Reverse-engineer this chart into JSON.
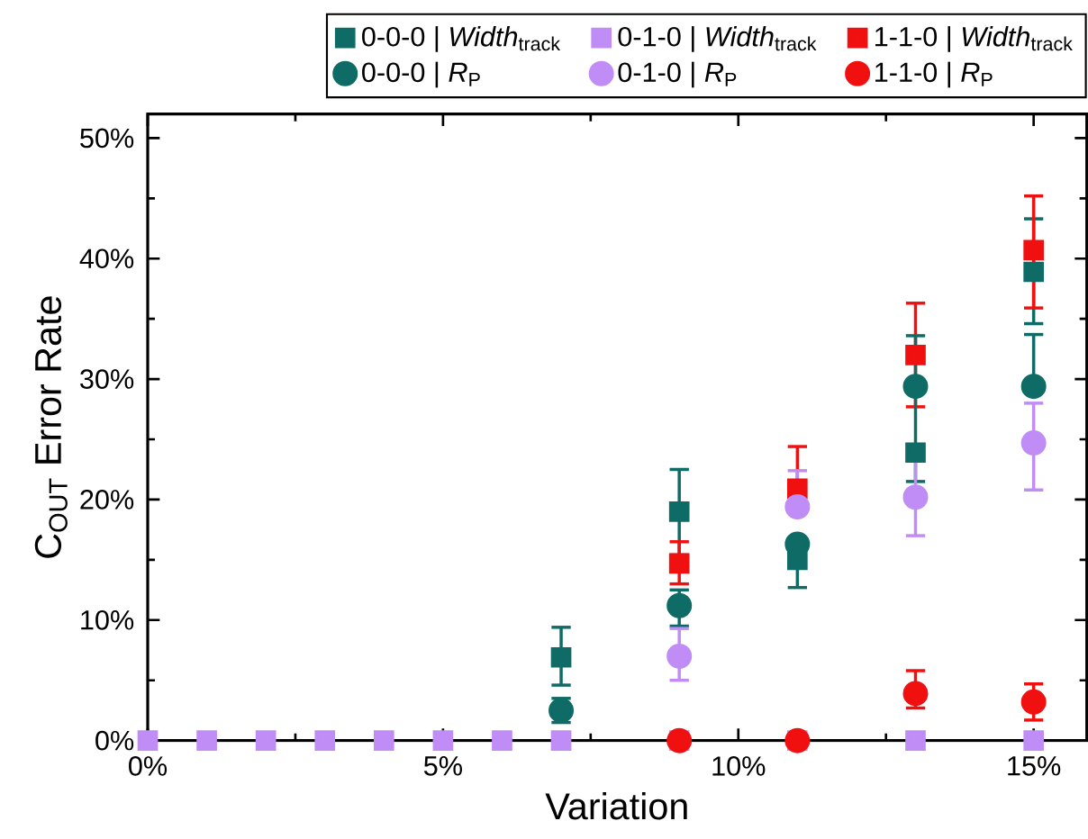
{
  "chart_data": {
    "type": "scatter",
    "xlabel": "Variation",
    "ylabel": "C$_{OUT}$ Error Rate",
    "x": [
      0,
      1,
      2,
      3,
      4,
      5,
      6,
      7,
      9,
      11,
      13,
      15
    ],
    "xlim": [
      0,
      15.9
    ],
    "ylim": [
      0,
      52
    ],
    "xticks": [
      {
        "value": 0,
        "label": "0%"
      },
      {
        "value": 5,
        "label": "5%"
      },
      {
        "value": 10,
        "label": "10%"
      },
      {
        "value": 15,
        "label": "15%"
      }
    ],
    "yticks": [
      {
        "value": 0,
        "label": "0%"
      },
      {
        "value": 10,
        "label": "10%"
      },
      {
        "value": 20,
        "label": "20%"
      },
      {
        "value": 30,
        "label": "30%"
      },
      {
        "value": 40,
        "label": "40%"
      },
      {
        "value": 50,
        "label": "50%"
      }
    ],
    "legend": "top",
    "grid": false,
    "series": [
      {
        "name": "0-0-0 | *Width*$_{track}$",
        "color": "#0e6b66",
        "marker": "square",
        "values": [
          null,
          null,
          null,
          null,
          null,
          null,
          null,
          6.9,
          19,
          15,
          23.9,
          38.9
        ],
        "errors": [
          null,
          null,
          null,
          null,
          null,
          null,
          null,
          [
            4.6,
            9.4
          ],
          [
            15.4,
            22.5
          ],
          [
            12.7,
            15
          ],
          null,
          [
            34.6,
            43.3
          ]
        ]
      },
      {
        "name": "0-1-0 | *Width*$_{track}$",
        "color": "#c08cf5",
        "marker": "square",
        "values": [
          0,
          0,
          0,
          0,
          0,
          0,
          0,
          0,
          0,
          0,
          0,
          0
        ]
      },
      {
        "name": "1-1-0 | *Width*$_{track}$",
        "color": "#f01010",
        "marker": "square",
        "values": [
          null,
          null,
          null,
          null,
          null,
          null,
          null,
          null,
          14.7,
          20.9,
          32,
          40.7
        ],
        "errors": [
          null,
          null,
          null,
          null,
          null,
          null,
          null,
          null,
          [
            13,
            16.5
          ],
          [
            20.9,
            24.4
          ],
          [
            27.7,
            36.3
          ],
          [
            35.9,
            45.2
          ]
        ]
      },
      {
        "name": "0-0-0 | *R*$_{P}$",
        "color": "#0e6b66",
        "marker": "circle",
        "values": [
          null,
          null,
          null,
          null,
          null,
          null,
          null,
          2.5,
          11.2,
          16.3,
          29.4,
          29.4
        ],
        "errors": [
          null,
          null,
          null,
          null,
          null,
          null,
          null,
          [
            1.5,
            3.5
          ],
          [
            9.5,
            12.5
          ],
          null,
          [
            21.5,
            33.6
          ],
          [
            29.4,
            33.7
          ]
        ]
      },
      {
        "name": "0-1-0 | *R*$_{P}$",
        "color": "#c08cf5",
        "marker": "circle",
        "values": [
          null,
          null,
          null,
          null,
          null,
          null,
          null,
          null,
          7,
          19.4,
          20.2,
          24.7
        ],
        "errors": [
          null,
          null,
          null,
          null,
          null,
          null,
          null,
          null,
          [
            5,
            9.3
          ],
          [
            19.4,
            22.4
          ],
          [
            17,
            23.5
          ],
          [
            20.8,
            28
          ]
        ]
      },
      {
        "name": "1-1-0 | *R*$_{P}$",
        "color": "#f01010",
        "marker": "circle",
        "values": [
          null,
          null,
          null,
          null,
          null,
          null,
          null,
          null,
          0,
          0,
          3.9,
          3.2
        ],
        "errors": [
          null,
          null,
          null,
          null,
          null,
          null,
          null,
          null,
          null,
          null,
          [
            2.7,
            5.8
          ],
          [
            1.7,
            4.7
          ]
        ]
      }
    ]
  }
}
